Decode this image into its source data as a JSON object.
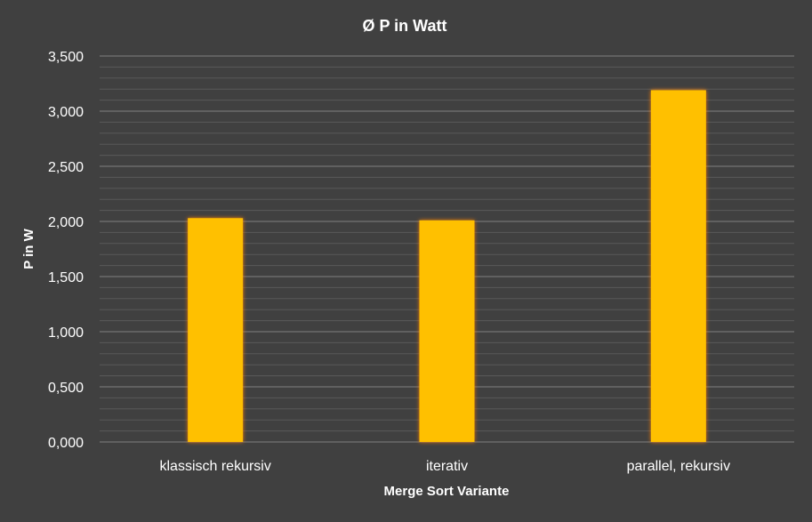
{
  "chart_data": {
    "type": "bar",
    "title": "Ø P in Watt",
    "xlabel": "Merge Sort Variante",
    "ylabel": "P in W",
    "categories": [
      "klassisch rekursiv",
      "iterativ",
      "parallel, rekursiv"
    ],
    "values": [
      2.03,
      2.01,
      3.19
    ],
    "ylim": [
      0,
      3.5
    ],
    "yticks": [
      "0,000",
      "0,500",
      "1,000",
      "1,500",
      "2,000",
      "2,500",
      "3,000",
      "3,500"
    ],
    "ytick_values": [
      0,
      0.5,
      1.0,
      1.5,
      2.0,
      2.5,
      3.0,
      3.5
    ],
    "grid": true,
    "minor_grid": true,
    "legend": "none"
  },
  "colors": {
    "background": "#404040",
    "bar_fill": "#FFC000",
    "bar_glow": "#FF7A00",
    "major_grid": "#7F7F7F",
    "minor_grid": "#595959",
    "text": "#FFFFFF"
  }
}
